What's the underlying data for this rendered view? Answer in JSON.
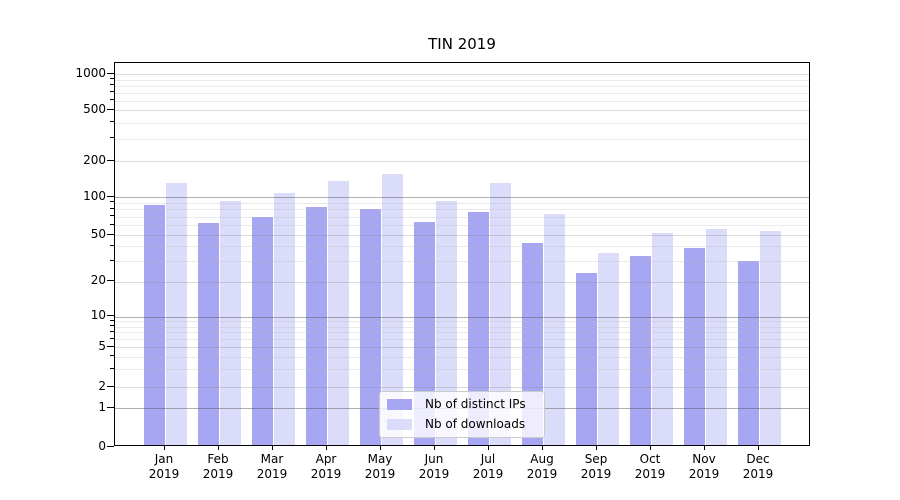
{
  "title": "TIN 2019",
  "chart_data": {
    "type": "bar",
    "title": "TIN 2019",
    "x_categories_line1": [
      "Jan",
      "Feb",
      "Mar",
      "Apr",
      "May",
      "Jun",
      "Jul",
      "Aug",
      "Sep",
      "Oct",
      "Nov",
      "Dec"
    ],
    "x_categories_line2": "2019",
    "series": [
      {
        "name": "Nb of distinct IPs",
        "key": "distinct-ips",
        "color": "#a6a6f2",
        "values": [
          83,
          60,
          67,
          80,
          78,
          61,
          74,
          41,
          23,
          32,
          37,
          29
        ]
      },
      {
        "name": "Nb of downloads",
        "key": "downloads",
        "color": "#dbdbfa",
        "values": [
          125,
          90,
          104,
          132,
          150,
          90,
          125,
          71,
          34,
          50,
          54,
          52
        ]
      }
    ],
    "y_axis": {
      "scale": "symlog",
      "ticks": [
        0,
        1,
        2,
        5,
        10,
        20,
        50,
        100,
        200,
        500,
        1000
      ]
    },
    "grid": true,
    "legend_position": "lower center"
  },
  "colors": {
    "bar_distinct_ips": "#a6a6f2",
    "bar_downloads": "#dbdbfa",
    "spine": "#000000",
    "grid_major": "rgba(80,80,80,0.45)",
    "grid_secondary": "rgba(140,140,140,0.32)",
    "grid_minor": "rgba(185,185,185,0.30)",
    "legend_border": "#cccccc",
    "background": "#ffffff"
  }
}
